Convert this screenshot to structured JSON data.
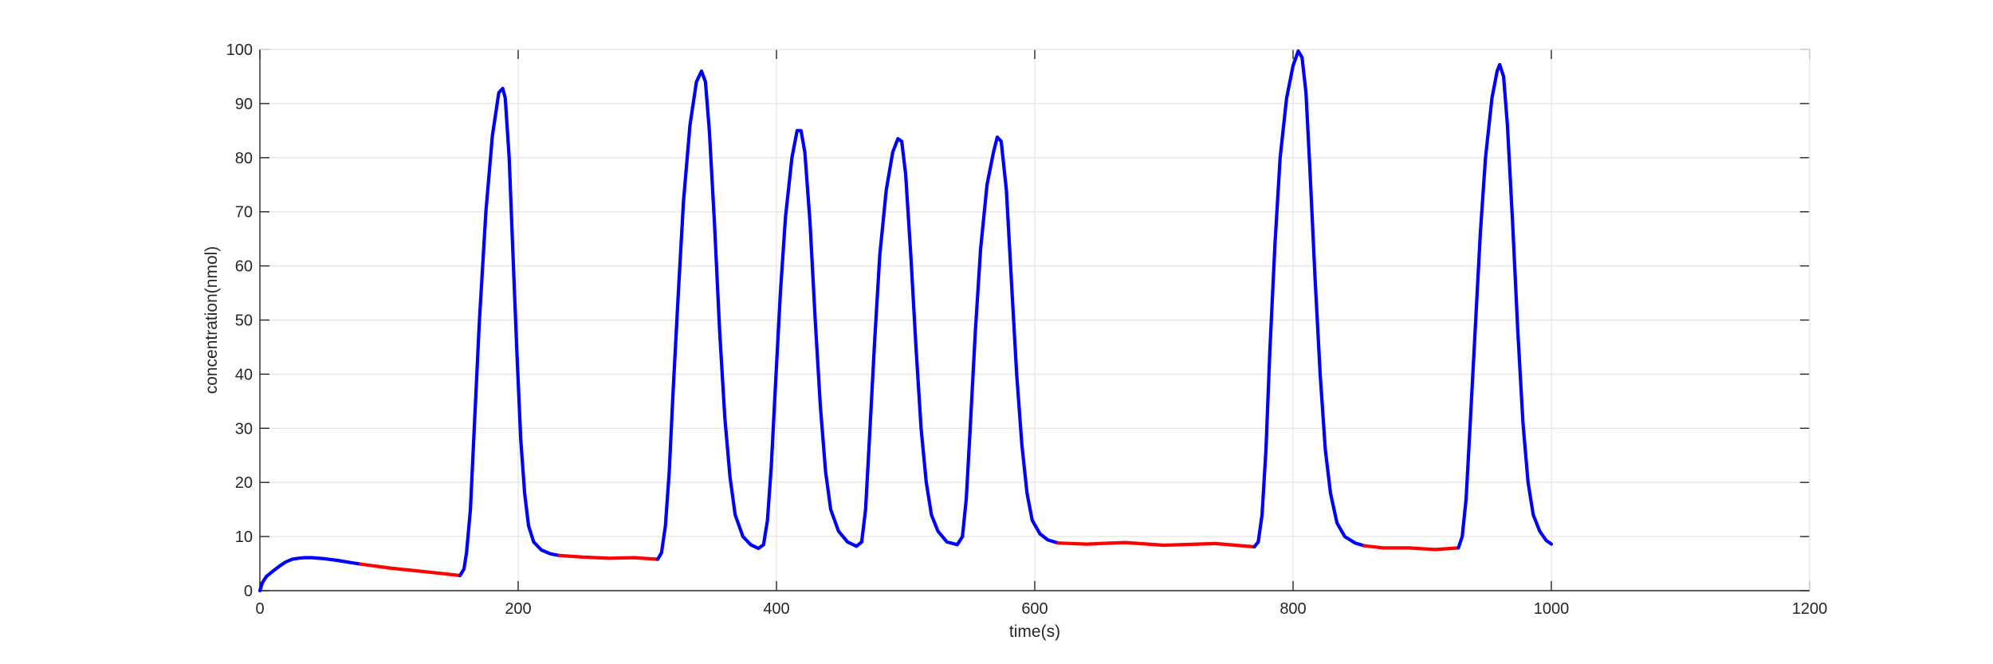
{
  "chart_data": {
    "type": "line",
    "title": "",
    "xlabel": "time(s)",
    "ylabel": "concentration(nmol)",
    "xlim": [
      0,
      1200
    ],
    "ylim": [
      0,
      100
    ],
    "x_ticks": [
      "0",
      "200",
      "400",
      "600",
      "800",
      "1000",
      "1200"
    ],
    "y_ticks": [
      "0",
      "10",
      "20",
      "30",
      "40",
      "50",
      "60",
      "70",
      "80",
      "90",
      "100"
    ],
    "grid": true,
    "box": true,
    "colors": {
      "blue": "#0000ff",
      "red": "#ff0000",
      "axis": "#262626",
      "grid": "#e6e6e6"
    },
    "segments": [
      {
        "color": "blue",
        "points": [
          [
            0,
            0
          ],
          [
            2,
            1.5
          ],
          [
            5,
            2.6
          ],
          [
            10,
            3.6
          ],
          [
            15,
            4.5
          ],
          [
            20,
            5.3
          ],
          [
            25,
            5.8
          ],
          [
            30,
            6.0
          ],
          [
            35,
            6.1
          ],
          [
            40,
            6.1
          ],
          [
            50,
            5.9
          ],
          [
            60,
            5.6
          ],
          [
            70,
            5.2
          ],
          [
            78,
            4.9
          ]
        ]
      },
      {
        "color": "red",
        "points": [
          [
            78,
            4.9
          ],
          [
            100,
            4.2
          ],
          [
            120,
            3.7
          ],
          [
            140,
            3.2
          ],
          [
            155,
            2.8
          ]
        ]
      },
      {
        "color": "blue",
        "points": [
          [
            155,
            2.8
          ],
          [
            158,
            4
          ],
          [
            160,
            7
          ],
          [
            163,
            15
          ],
          [
            166,
            30
          ],
          [
            170,
            50
          ],
          [
            175,
            70
          ],
          [
            180,
            84
          ],
          [
            185,
            92
          ],
          [
            188,
            92.8
          ],
          [
            190,
            91
          ],
          [
            193,
            80
          ],
          [
            196,
            62
          ],
          [
            199,
            44
          ],
          [
            202,
            28
          ],
          [
            205,
            18
          ],
          [
            208,
            12
          ],
          [
            212,
            9
          ],
          [
            218,
            7.5
          ],
          [
            225,
            6.8
          ],
          [
            232,
            6.5
          ]
        ]
      },
      {
        "color": "red",
        "points": [
          [
            232,
            6.5
          ],
          [
            250,
            6.2
          ],
          [
            270,
            6.0
          ],
          [
            290,
            6.1
          ],
          [
            308,
            5.8
          ]
        ]
      },
      {
        "color": "blue",
        "points": [
          [
            308,
            5.8
          ],
          [
            311,
            7
          ],
          [
            314,
            12
          ],
          [
            317,
            22
          ],
          [
            320,
            37
          ],
          [
            324,
            55
          ],
          [
            328,
            72
          ],
          [
            333,
            86
          ],
          [
            338,
            94
          ],
          [
            342,
            96
          ],
          [
            345,
            94
          ],
          [
            348,
            85
          ],
          [
            352,
            68
          ],
          [
            356,
            48
          ],
          [
            360,
            32
          ],
          [
            364,
            21
          ],
          [
            368,
            14
          ],
          [
            374,
            10
          ],
          [
            380,
            8.5
          ],
          [
            386,
            7.8
          ],
          [
            390,
            8.5
          ],
          [
            393,
            13
          ],
          [
            396,
            23
          ],
          [
            399,
            37
          ],
          [
            403,
            55
          ],
          [
            407,
            69
          ],
          [
            412,
            80
          ],
          [
            416,
            85
          ],
          [
            419,
            85
          ],
          [
            422,
            81
          ],
          [
            426,
            68
          ],
          [
            430,
            50
          ],
          [
            434,
            34
          ],
          [
            438,
            22
          ],
          [
            442,
            15
          ],
          [
            448,
            11
          ],
          [
            455,
            9
          ],
          [
            462,
            8.2
          ],
          [
            466,
            9
          ],
          [
            469,
            15
          ],
          [
            472,
            28
          ],
          [
            476,
            46
          ],
          [
            480,
            62
          ],
          [
            485,
            74
          ],
          [
            490,
            81
          ],
          [
            494,
            83.5
          ],
          [
            497,
            83
          ],
          [
            500,
            77
          ],
          [
            504,
            62
          ],
          [
            508,
            45
          ],
          [
            512,
            30
          ],
          [
            516,
            20
          ],
          [
            520,
            14
          ],
          [
            525,
            11
          ],
          [
            532,
            9
          ],
          [
            540,
            8.5
          ],
          [
            544,
            10
          ],
          [
            547,
            17
          ],
          [
            550,
            30
          ],
          [
            554,
            48
          ],
          [
            558,
            63
          ],
          [
            563,
            75
          ],
          [
            568,
            81
          ],
          [
            571,
            83.8
          ],
          [
            574,
            83
          ],
          [
            578,
            74
          ],
          [
            582,
            57
          ],
          [
            586,
            40
          ],
          [
            590,
            27
          ],
          [
            594,
            18
          ],
          [
            598,
            13
          ],
          [
            604,
            10.5
          ],
          [
            610,
            9.4
          ],
          [
            618,
            8.8
          ]
        ]
      },
      {
        "color": "red",
        "points": [
          [
            618,
            8.8
          ],
          [
            640,
            8.6
          ],
          [
            670,
            8.9
          ],
          [
            700,
            8.4
          ],
          [
            740,
            8.7
          ],
          [
            770,
            8.1
          ]
        ]
      },
      {
        "color": "blue",
        "points": [
          [
            770,
            8.1
          ],
          [
            773,
            9
          ],
          [
            776,
            14
          ],
          [
            779,
            26
          ],
          [
            782,
            44
          ],
          [
            786,
            64
          ],
          [
            790,
            80
          ],
          [
            795,
            91
          ],
          [
            800,
            97
          ],
          [
            804,
            99.7
          ],
          [
            807,
            98.5
          ],
          [
            810,
            92
          ],
          [
            813,
            78
          ],
          [
            817,
            58
          ],
          [
            821,
            40
          ],
          [
            825,
            26
          ],
          [
            829,
            18
          ],
          [
            834,
            12.5
          ],
          [
            840,
            10
          ],
          [
            848,
            8.8
          ],
          [
            855,
            8.3
          ]
        ]
      },
      {
        "color": "red",
        "points": [
          [
            855,
            8.3
          ],
          [
            870,
            7.9
          ],
          [
            890,
            7.9
          ],
          [
            910,
            7.6
          ],
          [
            928,
            7.9
          ]
        ]
      },
      {
        "color": "blue",
        "points": [
          [
            928,
            7.9
          ],
          [
            931,
            10
          ],
          [
            934,
            17
          ],
          [
            937,
            30
          ],
          [
            941,
            48
          ],
          [
            945,
            66
          ],
          [
            949,
            80
          ],
          [
            954,
            91
          ],
          [
            958,
            96
          ],
          [
            960,
            97.2
          ],
          [
            963,
            95
          ],
          [
            966,
            86
          ],
          [
            970,
            68
          ],
          [
            974,
            48
          ],
          [
            978,
            31
          ],
          [
            982,
            20
          ],
          [
            986,
            14
          ],
          [
            991,
            11
          ],
          [
            996,
            9.3
          ],
          [
            1000,
            8.6
          ]
        ]
      }
    ]
  }
}
